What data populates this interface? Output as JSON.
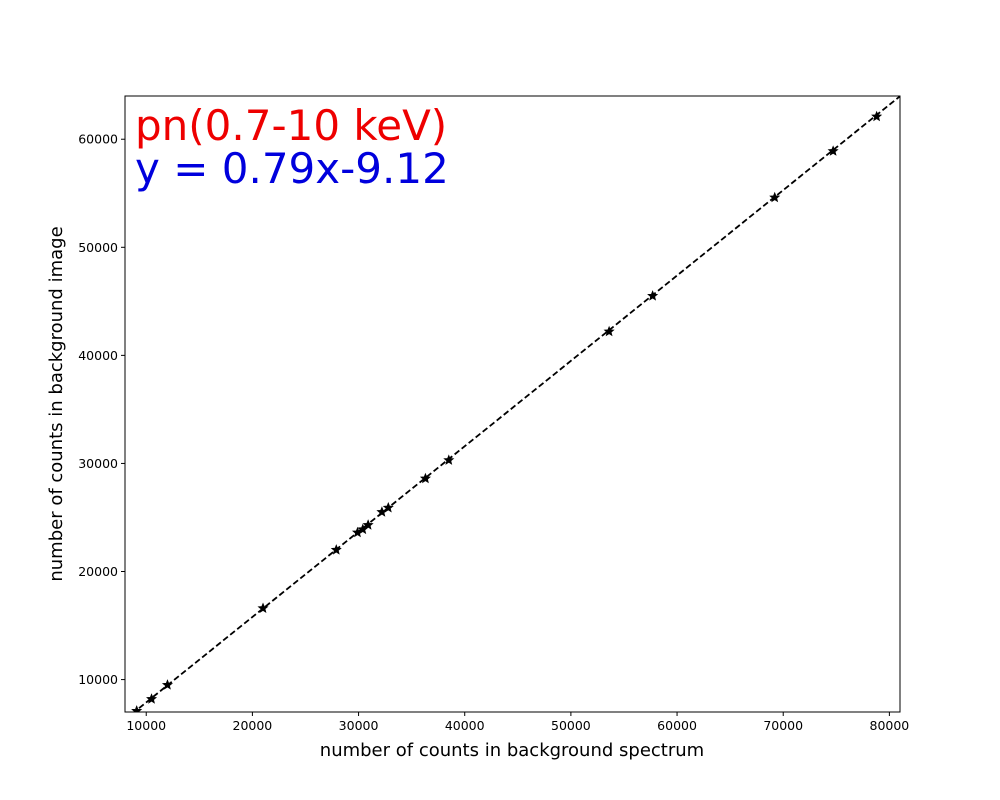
{
  "chart_data": {
    "type": "scatter",
    "title": "",
    "xlabel": "number of counts in background spectrum",
    "ylabel": "number of counts in background image",
    "xlim": [
      8000,
      81000
    ],
    "ylim": [
      7000,
      64000
    ],
    "xticks": [
      10000,
      20000,
      30000,
      40000,
      50000,
      60000,
      70000,
      80000
    ],
    "yticks": [
      10000,
      20000,
      30000,
      40000,
      50000,
      60000
    ],
    "grid": false,
    "annotations": [
      {
        "text": "pn(0.7-10 keV)",
        "color": "#ee0000"
      },
      {
        "text": "y = 0.79x-9.12",
        "color": "#0000dd"
      }
    ],
    "fit_line": {
      "slope": 0.79,
      "intercept": -9.12,
      "style": "dashed",
      "color": "#000000"
    },
    "marker": {
      "shape": "star",
      "color": "#000000"
    },
    "points": [
      {
        "x": 9100,
        "y": 7100
      },
      {
        "x": 10500,
        "y": 8200
      },
      {
        "x": 12000,
        "y": 9500
      },
      {
        "x": 21000,
        "y": 16600
      },
      {
        "x": 27900,
        "y": 22000
      },
      {
        "x": 29900,
        "y": 23600
      },
      {
        "x": 30400,
        "y": 23900
      },
      {
        "x": 30900,
        "y": 24300
      },
      {
        "x": 32200,
        "y": 25500
      },
      {
        "x": 32800,
        "y": 25900
      },
      {
        "x": 36300,
        "y": 28600
      },
      {
        "x": 38500,
        "y": 30300
      },
      {
        "x": 53600,
        "y": 42200
      },
      {
        "x": 57700,
        "y": 45500
      },
      {
        "x": 69200,
        "y": 54600
      },
      {
        "x": 74700,
        "y": 58900
      },
      {
        "x": 78800,
        "y": 62100
      }
    ]
  }
}
